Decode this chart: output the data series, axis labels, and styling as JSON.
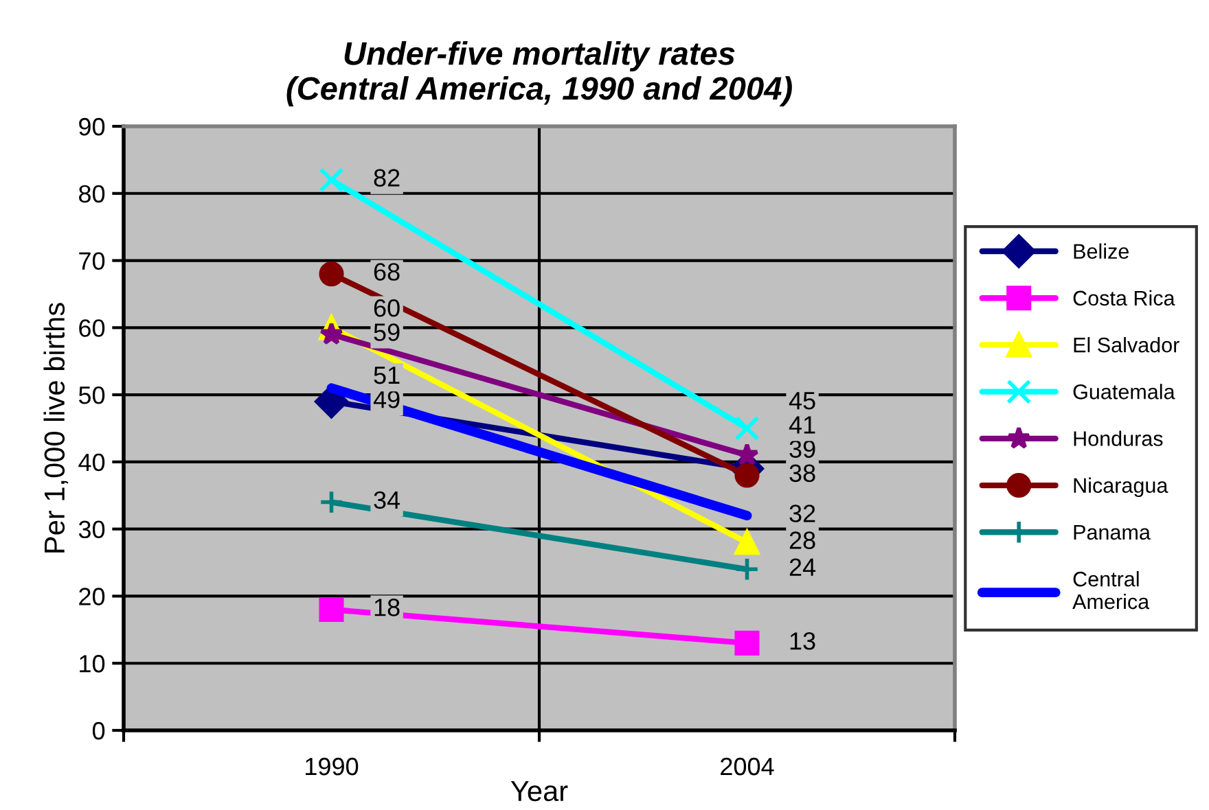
{
  "chart_data": {
    "type": "line",
    "title": "Under-five mortality rates\n(Central America, 1990 and 2004)",
    "xlabel": "Year",
    "ylabel": "Per 1,000 live births",
    "categories": [
      "1990",
      "2004"
    ],
    "ylim": [
      0,
      90
    ],
    "yticks": [
      0,
      10,
      20,
      30,
      40,
      50,
      60,
      70,
      80,
      90
    ],
    "grid": true,
    "legend": "right",
    "data_labels": true,
    "series": [
      {
        "name": "Belize",
        "color": "#000080",
        "values": [
          49,
          39
        ],
        "marker": "diamond"
      },
      {
        "name": "Costa Rica",
        "color": "#ff00ff",
        "values": [
          18,
          13
        ],
        "marker": "square"
      },
      {
        "name": "El Salvador",
        "color": "#ffff00",
        "values": [
          60,
          28
        ],
        "marker": "triangle"
      },
      {
        "name": "Guatemala",
        "color": "#00ffff",
        "values": [
          82,
          45
        ],
        "marker": "cross"
      },
      {
        "name": "Honduras",
        "color": "#800080",
        "values": [
          59,
          41
        ],
        "marker": "star"
      },
      {
        "name": "Nicaragua",
        "color": "#800000",
        "values": [
          68,
          38
        ],
        "marker": "circle"
      },
      {
        "name": "Panama",
        "color": "#008080",
        "values": [
          34,
          24
        ],
        "marker": "plus"
      },
      {
        "name": "Central\nAmerica",
        "color": "#0000ff",
        "values": [
          51,
          32
        ],
        "marker": "none"
      }
    ]
  }
}
